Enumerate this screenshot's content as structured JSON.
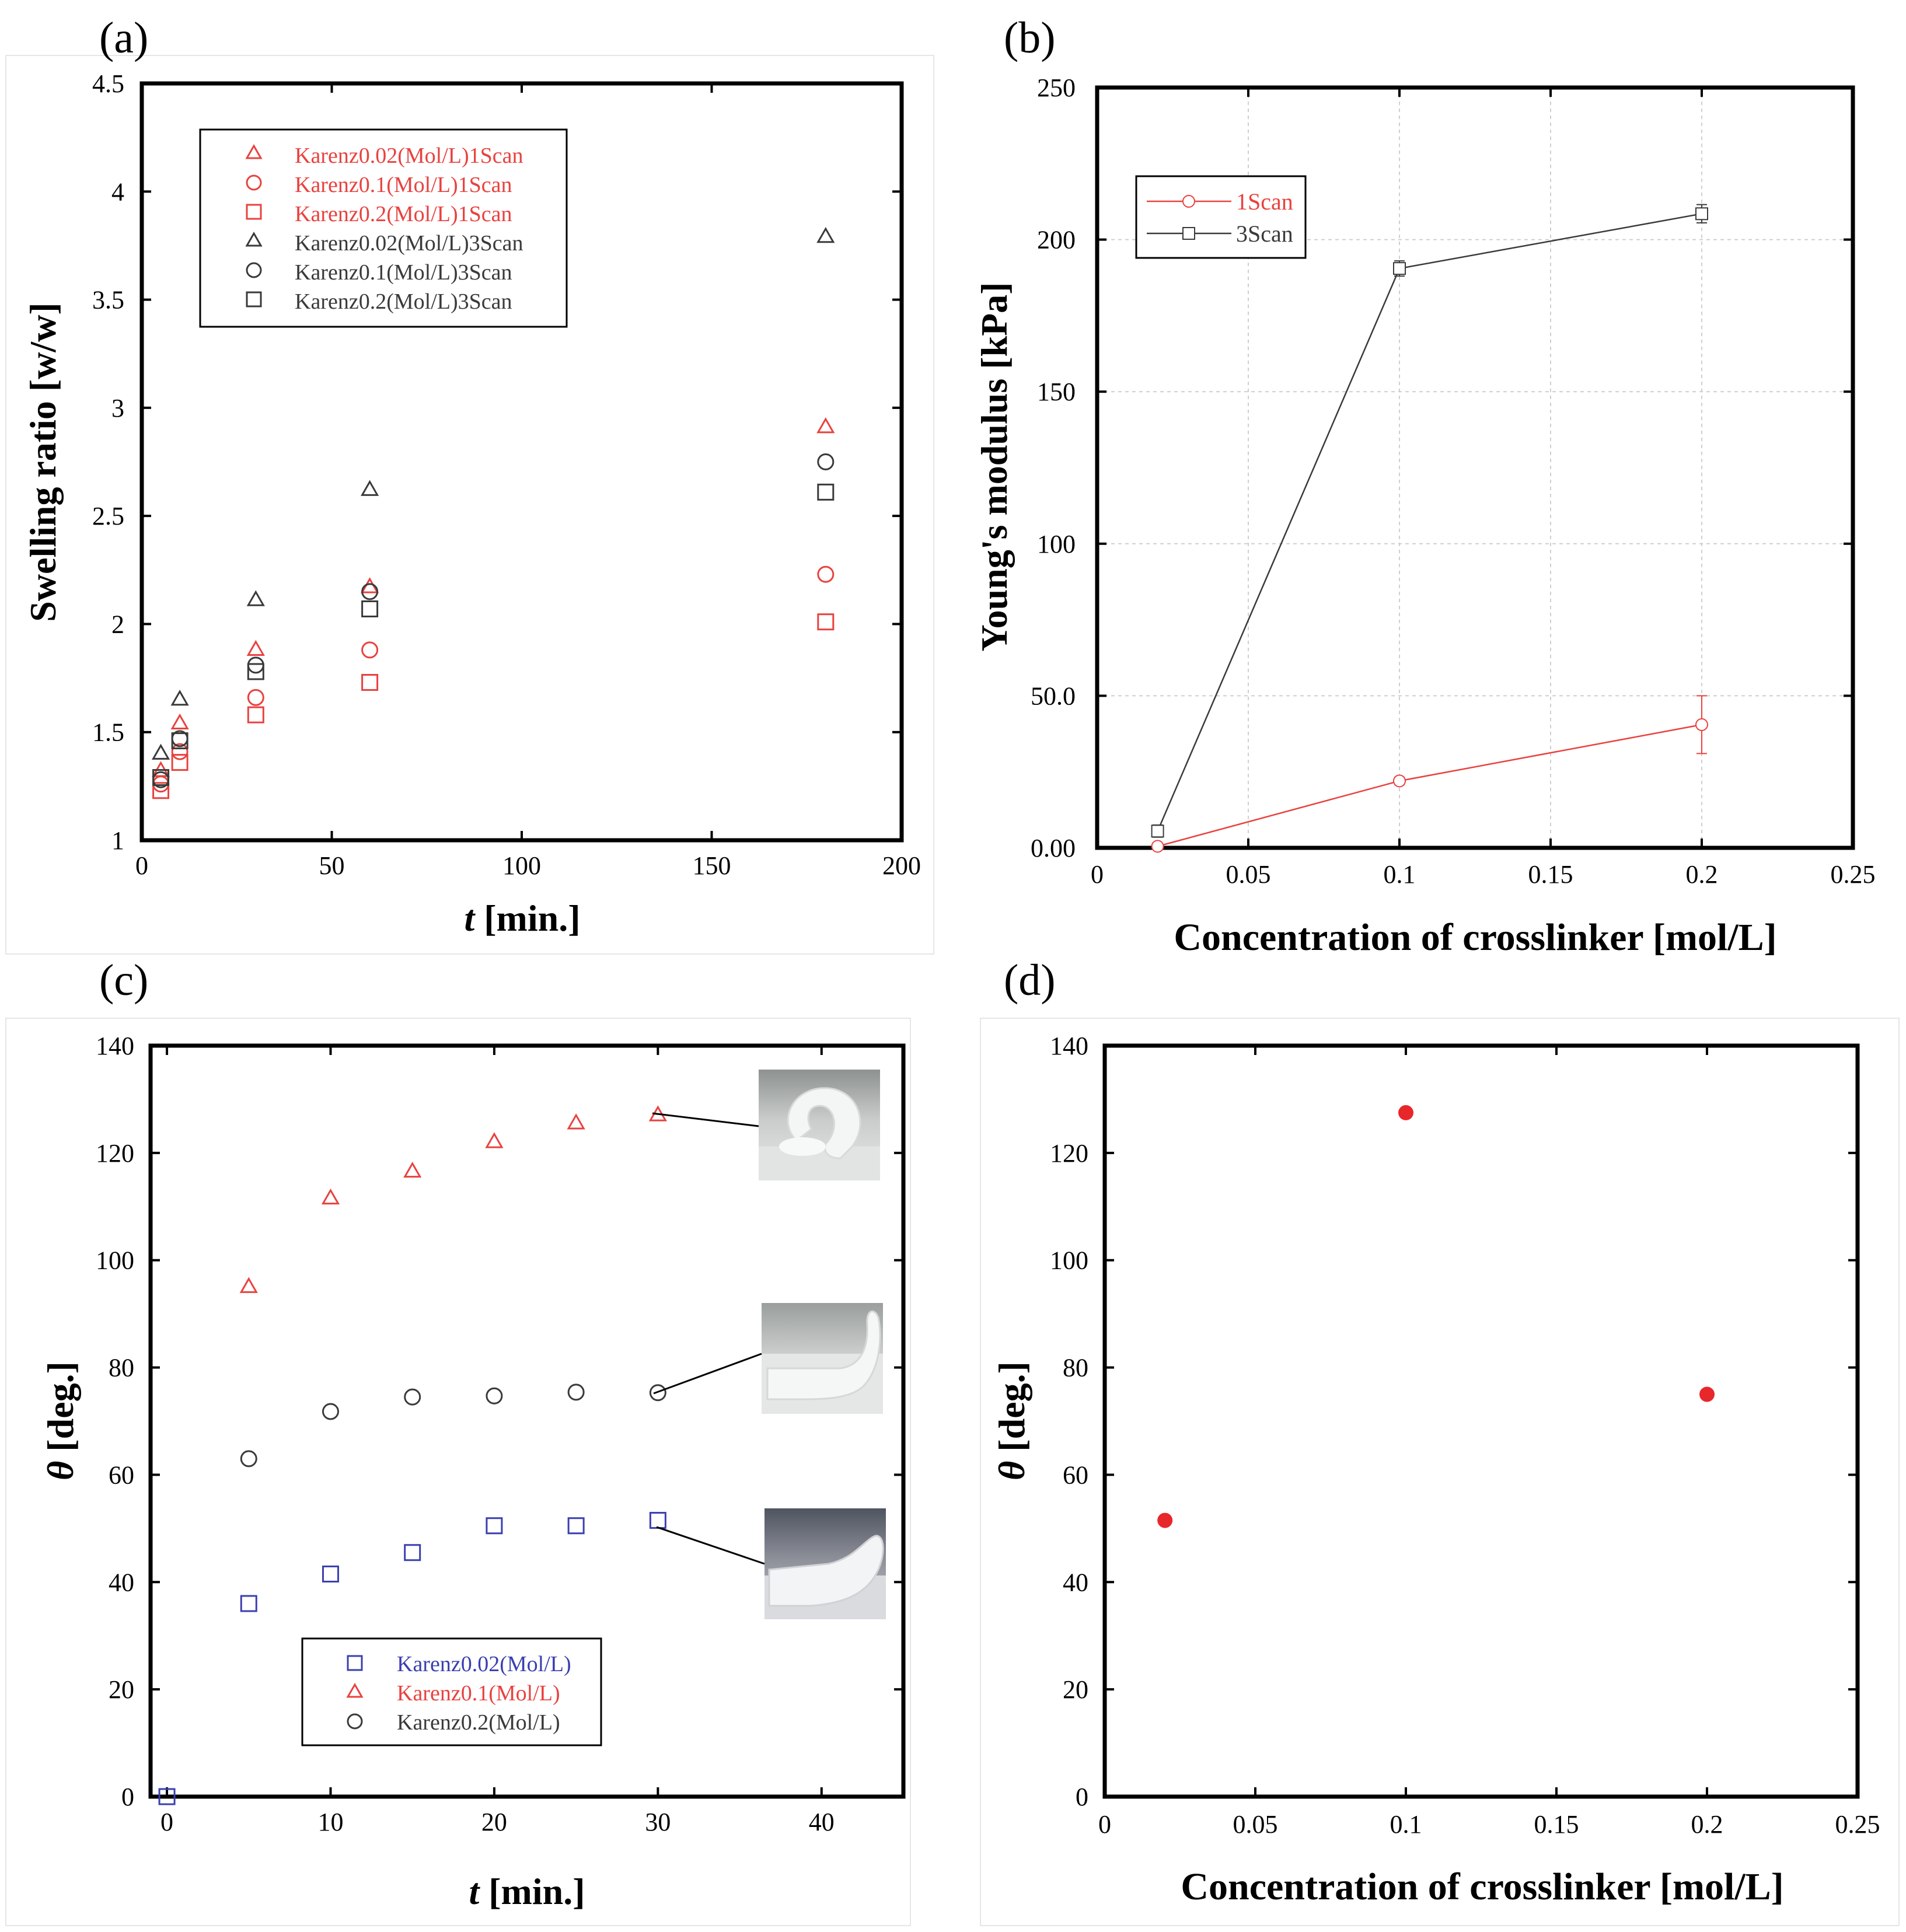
{
  "colors": {
    "red": "#e8423f",
    "black": "#3a3a3a",
    "blue": "#3b3fb0",
    "marker_fill_red": "#e8272a"
  },
  "chart_data": [
    {
      "id": "a",
      "panel_label": "(a)",
      "type": "scatter",
      "xlabel_italic": "t",
      "xlabel_rest": " [min.]",
      "ylabel": "Swelling ratio [w/w]",
      "xlim": [
        0,
        200
      ],
      "ylim": [
        1,
        4.5
      ],
      "xticks": [
        {
          "v": 0,
          "label": "0"
        },
        {
          "v": 50,
          "label": "50"
        },
        {
          "v": 100,
          "label": "100"
        },
        {
          "v": 150,
          "label": "150"
        },
        {
          "v": 200,
          "label": "200"
        }
      ],
      "yticks": [
        {
          "v": 1,
          "label": "1"
        },
        {
          "v": 1.5,
          "label": "1.5"
        },
        {
          "v": 2,
          "label": "2"
        },
        {
          "v": 2.5,
          "label": "2.5"
        },
        {
          "v": 3,
          "label": "3"
        },
        {
          "v": 3.5,
          "label": "3.5"
        },
        {
          "v": 4,
          "label": "4"
        },
        {
          "v": 4.5,
          "label": "4.5"
        }
      ],
      "legend_position": "top-left",
      "series": [
        {
          "name": "Karenz0.02(Mol/L)1Scan",
          "marker": "triangle",
          "color": "red",
          "x": [
            5,
            10,
            30,
            60,
            180
          ],
          "y": [
            1.32,
            1.54,
            1.88,
            2.17,
            2.91
          ]
        },
        {
          "name": "Karenz0.1(Mol/L)1Scan",
          "marker": "circle",
          "color": "red",
          "x": [
            5,
            10,
            30,
            60,
            180
          ],
          "y": [
            1.26,
            1.41,
            1.66,
            1.88,
            2.23
          ]
        },
        {
          "name": "Karenz0.2(Mol/L)1Scan",
          "marker": "square",
          "color": "red",
          "x": [
            5,
            10,
            30,
            60,
            180
          ],
          "y": [
            1.23,
            1.36,
            1.58,
            1.73,
            2.01
          ]
        },
        {
          "name": "Karenz0.02(Mol/L)3Scan",
          "marker": "triangle",
          "color": "black",
          "x": [
            5,
            10,
            30,
            60,
            180
          ],
          "y": [
            1.4,
            1.65,
            2.11,
            2.62,
            3.79
          ]
        },
        {
          "name": "Karenz0.1(Mol/L)3Scan",
          "marker": "circle",
          "color": "black",
          "x": [
            5,
            10,
            30,
            60,
            180
          ],
          "y": [
            1.28,
            1.47,
            1.81,
            2.15,
            2.75
          ]
        },
        {
          "name": "Karenz0.2(Mol/L)3Scan",
          "marker": "square",
          "color": "black",
          "x": [
            5,
            10,
            30,
            60,
            180
          ],
          "y": [
            1.29,
            1.46,
            1.78,
            2.07,
            2.61
          ]
        }
      ]
    },
    {
      "id": "b",
      "panel_label": "(b)",
      "type": "line",
      "xlabel": "Concentration of crosslinker [mol/L]",
      "ylabel": "Young's modulus [kPa]",
      "xlim": [
        0,
        0.25
      ],
      "ylim": [
        0,
        250
      ],
      "grid": true,
      "xticks": [
        {
          "v": 0,
          "label": "0"
        },
        {
          "v": 0.05,
          "label": "0.05"
        },
        {
          "v": 0.1,
          "label": "0.1"
        },
        {
          "v": 0.15,
          "label": "0.15"
        },
        {
          "v": 0.2,
          "label": "0.2"
        },
        {
          "v": 0.25,
          "label": "0.25"
        }
      ],
      "yticks": [
        {
          "v": 0,
          "label": "0.00"
        },
        {
          "v": 50,
          "label": "50.0"
        },
        {
          "v": 100,
          "label": "100"
        },
        {
          "v": 150,
          "label": "150"
        },
        {
          "v": 200,
          "label": "200"
        },
        {
          "v": 250,
          "label": "250"
        }
      ],
      "legend_position": "top-left",
      "series": [
        {
          "name": "1Scan",
          "marker": "circle",
          "color": "red",
          "x": [
            0.02,
            0.1,
            0.2
          ],
          "y": [
            0.5,
            22,
            40.5
          ],
          "err": [
            0.5,
            1.2,
            9.5
          ]
        },
        {
          "name": "3Scan",
          "marker": "square",
          "color": "black",
          "x": [
            0.02,
            0.1,
            0.2
          ],
          "y": [
            5.5,
            190.5,
            208.5
          ],
          "err": [
            2.0,
            2.5,
            3.0
          ]
        }
      ]
    },
    {
      "id": "c",
      "panel_label": "(c)",
      "type": "scatter",
      "xlabel_italic": "t",
      "xlabel_rest": " [min.]",
      "ylabel_italic": "θ",
      "ylabel_rest": " [deg.]",
      "xlim": [
        -1,
        45
      ],
      "ylim": [
        0,
        140
      ],
      "xticks": [
        {
          "v": 0,
          "label": "0"
        },
        {
          "v": 10,
          "label": "10"
        },
        {
          "v": 20,
          "label": "20"
        },
        {
          "v": 30,
          "label": "30"
        },
        {
          "v": 40,
          "label": "40"
        }
      ],
      "yticks": [
        {
          "v": 0,
          "label": "0"
        },
        {
          "v": 20,
          "label": "20"
        },
        {
          "v": 40,
          "label": "40"
        },
        {
          "v": 60,
          "label": "60"
        },
        {
          "v": 80,
          "label": "80"
        },
        {
          "v": 100,
          "label": "100"
        },
        {
          "v": 120,
          "label": "120"
        },
        {
          "v": 140,
          "label": "140"
        }
      ],
      "legend_position": "bottom-center",
      "series": [
        {
          "name": "Karenz0.02(Mol/L)",
          "marker": "square",
          "color": "blue",
          "x": [
            0,
            5,
            10,
            15,
            20,
            25,
            30
          ],
          "y": [
            0,
            36,
            41.5,
            45.5,
            50.5,
            50.5,
            51.5
          ]
        },
        {
          "name": "Karenz0.1(Mol/L)",
          "marker": "triangle",
          "color": "red",
          "x": [
            5,
            10,
            15,
            20,
            25,
            30
          ],
          "y": [
            95,
            111.5,
            116.5,
            122,
            125.5,
            127
          ]
        },
        {
          "name": "Karenz0.2(Mol/L)",
          "marker": "circle",
          "color": "black",
          "x": [
            5,
            10,
            15,
            20,
            25,
            30
          ],
          "y": [
            63,
            71.8,
            74.5,
            74.7,
            75.4,
            75.3
          ]
        }
      ],
      "insets": [
        "hydrogel-photo-0.1",
        "hydrogel-photo-0.2",
        "hydrogel-photo-0.02"
      ]
    },
    {
      "id": "d",
      "panel_label": "(d)",
      "type": "scatter",
      "xlabel": "Concentration of crosslinker [mol/L]",
      "ylabel_italic": "θ",
      "ylabel_rest": " [deg.]",
      "xlim": [
        0,
        0.25
      ],
      "ylim": [
        0,
        140
      ],
      "xticks": [
        {
          "v": 0,
          "label": "0"
        },
        {
          "v": 0.05,
          "label": "0.05"
        },
        {
          "v": 0.1,
          "label": "0.1"
        },
        {
          "v": 0.15,
          "label": "0.15"
        },
        {
          "v": 0.2,
          "label": "0.2"
        },
        {
          "v": 0.25,
          "label": "0.25"
        }
      ],
      "yticks": [
        {
          "v": 0,
          "label": "0"
        },
        {
          "v": 20,
          "label": "20"
        },
        {
          "v": 40,
          "label": "40"
        },
        {
          "v": 60,
          "label": "60"
        },
        {
          "v": 80,
          "label": "80"
        },
        {
          "v": 100,
          "label": "100"
        },
        {
          "v": 120,
          "label": "120"
        },
        {
          "v": 140,
          "label": "140"
        }
      ],
      "series": [
        {
          "name": "θ",
          "marker": "filled-circle",
          "color": "marker_fill_red",
          "x": [
            0.02,
            0.1,
            0.2
          ],
          "y": [
            51.5,
            127.5,
            75
          ]
        }
      ]
    }
  ]
}
